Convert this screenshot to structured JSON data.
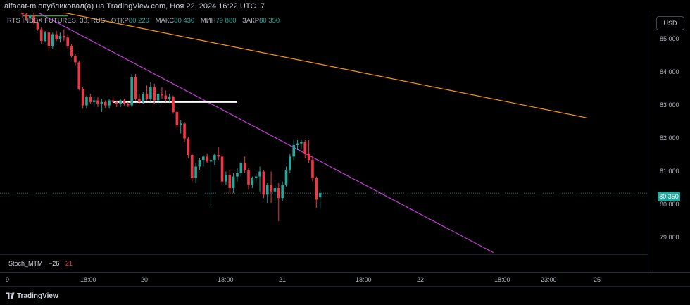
{
  "header": {
    "published_text": "alfacat-m опубликовал(а) на TradingView.com, Ноя 22, 2024 16:22 UTC+7"
  },
  "legend": {
    "symbol": "RTS INDEX FUTURES, 30, RUS",
    "open_label": "ОТКР",
    "open_value": "80 220",
    "high_label": "МАКС",
    "high_value": "80 430",
    "low_label": "МИН",
    "low_value": "79 880",
    "close_label": "ЗАКР",
    "close_value": "80 350"
  },
  "currency_button": "USD",
  "price_scale": [
    "85 000",
    "84 000",
    "83 000",
    "82 000",
    "81 000",
    "80 000",
    "79 000"
  ],
  "last_price": "80 350",
  "indicator": {
    "name": "Stoch_MTM",
    "value1": "−26",
    "value2": "21"
  },
  "time_axis": [
    "9",
    "18:00",
    "20",
    "18:00",
    "21",
    "18:00",
    "22",
    "18:00",
    "23:00",
    "25"
  ],
  "footer": {
    "brand": "TradingView"
  },
  "colors": {
    "up": "#26a69a",
    "down": "#f23645",
    "trend_magenta": "#c63fd9",
    "trend_orange": "#ff9800",
    "level_white": "#ffffff",
    "level_green": "#4caf50"
  },
  "chart_data": {
    "type": "candlestick",
    "symbol": "RTS INDEX FUTURES",
    "interval": "30",
    "ylim": [
      78500,
      85800
    ],
    "y_ticks": [
      85000,
      84000,
      83000,
      82000,
      81000,
      80000,
      79000
    ],
    "last_close": 80350,
    "candles": [
      [
        85900,
        85950,
        85650,
        85750
      ],
      [
        85750,
        85850,
        85550,
        85650
      ],
      [
        85650,
        85750,
        85500,
        85700
      ],
      [
        85700,
        85800,
        85450,
        85500
      ],
      [
        85500,
        85600,
        85250,
        85300
      ],
      [
        85300,
        85350,
        84850,
        84950
      ],
      [
        84950,
        85250,
        84900,
        85200
      ],
      [
        85200,
        85250,
        84650,
        84800
      ],
      [
        84800,
        85200,
        84700,
        85150
      ],
      [
        85150,
        85250,
        84950,
        85000
      ],
      [
        85000,
        85200,
        84900,
        85100
      ],
      [
        85100,
        85300,
        84950,
        85050
      ],
      [
        85050,
        85150,
        84700,
        84800
      ],
      [
        84800,
        84850,
        84450,
        84500
      ],
      [
        84500,
        84550,
        84200,
        84300
      ],
      [
        84300,
        84350,
        83450,
        83500
      ],
      [
        83500,
        83550,
        82900,
        83000
      ],
      [
        83000,
        83300,
        82900,
        83250
      ],
      [
        83250,
        83350,
        83050,
        83100
      ],
      [
        83100,
        83250,
        82950,
        83150
      ],
      [
        83150,
        83250,
        82950,
        83050
      ],
      [
        83050,
        83200,
        82800,
        83100
      ],
      [
        83100,
        83150,
        82900,
        83000
      ],
      [
        83000,
        83200,
        82900,
        83150
      ],
      [
        83150,
        83250,
        83050,
        83100
      ],
      [
        83100,
        83150,
        82950,
        83050
      ],
      [
        83050,
        83200,
        82950,
        83150
      ],
      [
        83150,
        83200,
        83000,
        83050
      ],
      [
        83050,
        83100,
        82950,
        83000
      ],
      [
        83000,
        83950,
        82950,
        83850
      ],
      [
        83850,
        83950,
        83150,
        83200
      ],
      [
        83200,
        83350,
        83050,
        83100
      ],
      [
        83100,
        83400,
        83050,
        83350
      ],
      [
        83350,
        83600,
        83150,
        83200
      ],
      [
        83200,
        83700,
        83100,
        83550
      ],
      [
        83550,
        83650,
        83050,
        83150
      ],
      [
        83150,
        83400,
        83050,
        83350
      ],
      [
        83350,
        83550,
        83200,
        83300
      ],
      [
        83300,
        83450,
        83100,
        83200
      ],
      [
        83200,
        83350,
        83100,
        83250
      ],
      [
        83250,
        83300,
        82750,
        82800
      ],
      [
        82800,
        82850,
        82300,
        82400
      ],
      [
        82400,
        82550,
        82150,
        82450
      ],
      [
        82450,
        82500,
        81900,
        82000
      ],
      [
        82000,
        82050,
        81400,
        81500
      ],
      [
        81500,
        81550,
        80700,
        80800
      ],
      [
        80800,
        81250,
        80650,
        81150
      ],
      [
        81150,
        81400,
        81050,
        81350
      ],
      [
        81350,
        81500,
        81150,
        81450
      ],
      [
        81450,
        81550,
        81250,
        81300
      ],
      [
        81300,
        81400,
        79950,
        81350
      ],
      [
        81350,
        81550,
        81200,
        81500
      ],
      [
        81500,
        81750,
        81350,
        81450
      ],
      [
        81450,
        81550,
        80600,
        80700
      ],
      [
        80700,
        81000,
        80600,
        80900
      ],
      [
        80900,
        81050,
        80350,
        80500
      ],
      [
        80500,
        80950,
        80350,
        80850
      ],
      [
        80850,
        81100,
        80700,
        80950
      ],
      [
        80950,
        81300,
        80850,
        81250
      ],
      [
        81250,
        81450,
        80950,
        81050
      ],
      [
        81050,
        81100,
        80450,
        80600
      ],
      [
        80600,
        80850,
        80500,
        80800
      ],
      [
        80800,
        80950,
        80700,
        80850
      ],
      [
        80850,
        81150,
        80400,
        81000
      ],
      [
        81000,
        81050,
        80200,
        80300
      ],
      [
        80300,
        80650,
        80050,
        80600
      ],
      [
        80600,
        81000,
        80050,
        80400
      ],
      [
        80400,
        80600,
        80100,
        80500
      ],
      [
        80500,
        80650,
        79500,
        80200
      ],
      [
        80200,
        80700,
        80100,
        80600
      ],
      [
        80600,
        81150,
        80550,
        81050
      ],
      [
        81050,
        81550,
        80950,
        81450
      ],
      [
        81450,
        81950,
        81350,
        81800
      ],
      [
        81800,
        81950,
        81650,
        81850
      ],
      [
        81850,
        81950,
        81700,
        81900
      ],
      [
        81900,
        81950,
        81400,
        81550
      ],
      [
        81550,
        81950,
        81250,
        81350
      ],
      [
        81350,
        81450,
        80700,
        80800
      ],
      [
        80800,
        80850,
        79900,
        80150
      ],
      [
        80220,
        80430,
        79880,
        80350
      ]
    ],
    "lines": [
      {
        "name": "trend_magenta",
        "from": [
          0,
          86050
        ],
        "to": [
          125,
          78550
        ]
      },
      {
        "name": "trend_orange",
        "from": [
          0,
          86050
        ],
        "to": [
          150,
          82620
        ]
      },
      {
        "name": "level_white",
        "from": [
          24,
          83100
        ],
        "to": [
          57,
          83100
        ]
      },
      {
        "name": "level_green",
        "from": [
          0,
          85700
        ],
        "to": [
          12,
          85700
        ]
      }
    ]
  }
}
